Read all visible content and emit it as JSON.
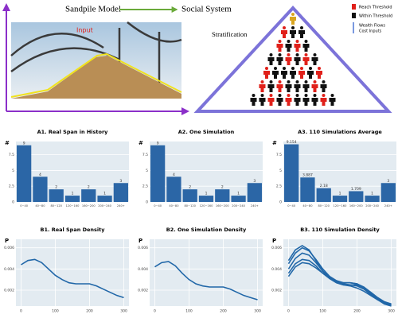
{
  "diagram": {
    "left_title": "Sandpile Model",
    "right_title": "Social System",
    "photo_label": "Input",
    "stratification": "Stratification",
    "legend": [
      "Reach Threshold",
      "Within Threshold",
      "Wealth Flows",
      "Cost Inputs"
    ]
  },
  "chart_data": [
    {
      "type": "bar",
      "title": "A1. Real Span in History",
      "ylabel": "#",
      "categories": [
        "0~40",
        "40~80",
        "80~120",
        "120~160",
        "160~200",
        "200~240",
        "240+"
      ],
      "values": [
        9,
        4,
        2,
        1,
        2,
        1,
        3
      ],
      "color": "#2b66a6",
      "ylim": [
        0,
        9.6
      ],
      "yticks": [
        0,
        2.5,
        5,
        7.5
      ],
      "grid": true
    },
    {
      "type": "bar",
      "title": "A2. One Simulation",
      "ylabel": "#",
      "categories": [
        "0~40",
        "40~80",
        "80~120",
        "120~160",
        "160~200",
        "200~240",
        "240+"
      ],
      "values": [
        9,
        4,
        2,
        1,
        2,
        1,
        3
      ],
      "color": "#2b66a6",
      "ylim": [
        0,
        9.6
      ],
      "yticks": [
        0,
        2.5,
        5,
        7.5
      ],
      "grid": true
    },
    {
      "type": "bar",
      "title": "A3. 110  Simulations Average",
      "ylabel": "#",
      "categories": [
        "0~40",
        "40~80",
        "80~120",
        "120~160",
        "160~200",
        "200~240",
        "240+"
      ],
      "values": [
        9.154,
        3.887,
        2.18,
        1,
        1.709,
        1,
        3
      ],
      "color": "#2b66a6",
      "ylim": [
        0,
        9.6
      ],
      "yticks": [
        0,
        2.5,
        5,
        7.5
      ],
      "grid": true
    },
    {
      "type": "line",
      "title": "B1. Real Span Density",
      "ylabel": "P",
      "x": [
        0,
        20,
        40,
        60,
        80,
        100,
        120,
        140,
        160,
        180,
        200,
        220,
        240,
        260,
        280,
        300
      ],
      "series": [
        {
          "color": "#2167a8",
          "values": [
            0.0044,
            0.0048,
            0.0049,
            0.0046,
            0.004,
            0.0034,
            0.003,
            0.0027,
            0.0026,
            0.0026,
            0.0026,
            0.0024,
            0.0021,
            0.0018,
            0.0015,
            0.0013
          ]
        }
      ],
      "xlim": [
        -15,
        315
      ],
      "xticks": [
        0,
        100,
        200,
        300
      ],
      "ylim": [
        0.0005,
        0.0068
      ],
      "yticks": [
        0.002,
        0.004,
        0.006
      ],
      "grid": true
    },
    {
      "type": "line",
      "title": "B2. One Simulation Density",
      "ylabel": "P",
      "x": [
        0,
        20,
        40,
        60,
        80,
        100,
        120,
        140,
        160,
        180,
        200,
        220,
        240,
        260,
        280,
        300
      ],
      "series": [
        {
          "color": "#2167a8",
          "values": [
            0.0042,
            0.0046,
            0.0047,
            0.0043,
            0.0036,
            0.003,
            0.0026,
            0.0024,
            0.0023,
            0.0023,
            0.0023,
            0.0021,
            0.0018,
            0.0015,
            0.0013,
            0.0011
          ]
        }
      ],
      "xlim": [
        -15,
        315
      ],
      "xticks": [
        0,
        100,
        200,
        300
      ],
      "ylim": [
        0.0005,
        0.0068
      ],
      "yticks": [
        0.002,
        0.004,
        0.006
      ],
      "grid": true
    },
    {
      "type": "line",
      "title": "B3. 110 Simulation Density",
      "ylabel": "P",
      "x": [
        0,
        20,
        40,
        60,
        80,
        100,
        120,
        140,
        160,
        180,
        200,
        220,
        240,
        260,
        280,
        300
      ],
      "series": [
        {
          "color": "#2167a8",
          "values": [
            0.004,
            0.005,
            0.0055,
            0.0053,
            0.0046,
            0.0038,
            0.0032,
            0.0028,
            0.0026,
            0.0025,
            0.0024,
            0.0021,
            0.0016,
            0.0011,
            0.0007,
            0.0005
          ]
        },
        {
          "color": "#2167a8",
          "values": [
            0.0045,
            0.0055,
            0.006,
            0.0057,
            0.0049,
            0.004,
            0.0033,
            0.0029,
            0.0027,
            0.0027,
            0.0026,
            0.0022,
            0.0017,
            0.0012,
            0.0008,
            0.0006
          ]
        },
        {
          "color": "#2167a8",
          "values": [
            0.0036,
            0.0045,
            0.0049,
            0.0048,
            0.0043,
            0.0036,
            0.0031,
            0.0027,
            0.0025,
            0.0024,
            0.0022,
            0.0019,
            0.0015,
            0.0011,
            0.0008,
            0.0006
          ]
        },
        {
          "color": "#2167a8",
          "values": [
            0.0048,
            0.0058,
            0.0062,
            0.0058,
            0.0048,
            0.0038,
            0.0031,
            0.0027,
            0.0025,
            0.0025,
            0.0025,
            0.0022,
            0.0018,
            0.0013,
            0.0009,
            0.0007
          ]
        },
        {
          "color": "#2167a8",
          "values": [
            0.0033,
            0.0042,
            0.0046,
            0.0045,
            0.0041,
            0.0036,
            0.0031,
            0.0028,
            0.0027,
            0.0027,
            0.0026,
            0.0023,
            0.0018,
            0.0013,
            0.0009,
            0.0007
          ]
        }
      ],
      "xlim": [
        -15,
        315
      ],
      "xticks": [
        0,
        100,
        200,
        300
      ],
      "ylim": [
        0.0005,
        0.0068
      ],
      "yticks": [
        0.002,
        0.004,
        0.006
      ],
      "grid": true
    }
  ]
}
